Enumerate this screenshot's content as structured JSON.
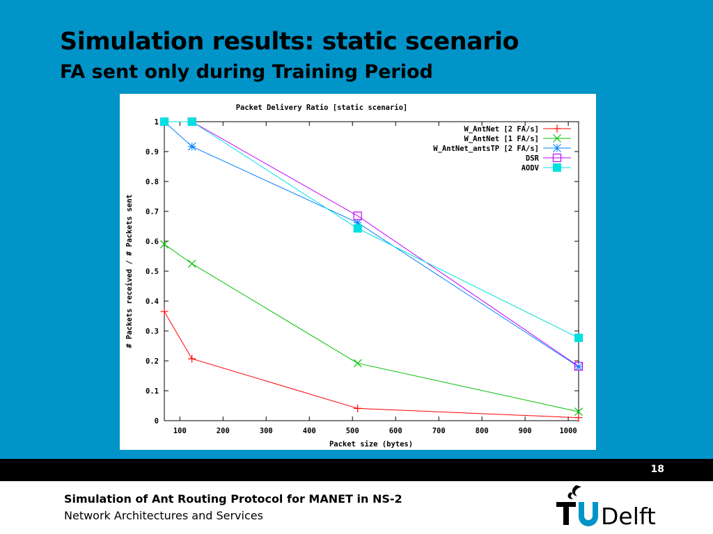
{
  "slide": {
    "title": "Simulation results: static scenario",
    "subtitle": "FA sent only during Training Period",
    "page_number": "18",
    "footer_title": "Simulation of Ant Routing Protocol for MANET in NS-2",
    "footer_subtitle": "Network Architectures and Services",
    "logo_text": "TUDelft",
    "background_color": "#0194c8"
  },
  "chart_data": {
    "type": "line",
    "title": "Packet Delivery Ratio [static scenario]",
    "xlabel": "Packet size (bytes)",
    "ylabel": "# Packets received / # Packets sent",
    "xlim": [
      64,
      1024
    ],
    "ylim": [
      0,
      1
    ],
    "xticks": [
      100,
      200,
      300,
      400,
      500,
      600,
      700,
      800,
      900,
      1000
    ],
    "yticks": [
      0,
      0.1,
      0.2,
      0.3,
      0.4,
      0.5,
      0.6,
      0.7,
      0.8,
      0.9,
      1
    ],
    "grid": false,
    "legend_position": "top-right",
    "series": [
      {
        "name": "W_AntNet [2 FA/s]",
        "color": "#ff0000",
        "marker": "plus",
        "points": [
          [
            64,
            0.365
          ],
          [
            128,
            0.207
          ],
          [
            512,
            0.041
          ],
          [
            1024,
            0.01
          ]
        ]
      },
      {
        "name": "W_AntNet [1 FA/s]",
        "color": "#00c000",
        "marker": "cross",
        "points": [
          [
            64,
            0.59
          ],
          [
            128,
            0.525
          ],
          [
            512,
            0.192
          ],
          [
            1024,
            0.03
          ]
        ]
      },
      {
        "name": "W_AntNet_antsTP [2 FA/s]",
        "color": "#0080ff",
        "marker": "star",
        "points": [
          [
            64,
            1.0
          ],
          [
            128,
            0.917
          ],
          [
            512,
            0.662
          ],
          [
            1024,
            0.18
          ]
        ]
      },
      {
        "name": "DSR",
        "color": "#c000ff",
        "marker": "square-open",
        "points": [
          [
            64,
            1.0
          ],
          [
            128,
            1.0
          ],
          [
            512,
            0.685
          ],
          [
            1024,
            0.182
          ]
        ]
      },
      {
        "name": "AODV",
        "color": "#00e0e0",
        "marker": "square-filled",
        "points": [
          [
            64,
            1.0
          ],
          [
            128,
            1.0
          ],
          [
            512,
            0.643
          ],
          [
            1024,
            0.277
          ]
        ]
      }
    ]
  }
}
